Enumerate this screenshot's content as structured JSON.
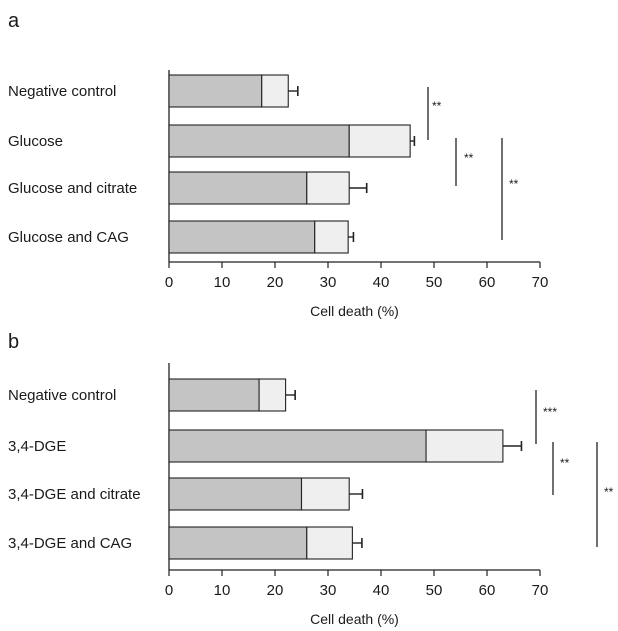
{
  "colors": {
    "dark_segment": "#c4c4c4",
    "light_segment": "#efefef",
    "stroke": "#222222",
    "text": "#1a1a1a"
  },
  "chart_data": [
    {
      "panel_label": "a",
      "type": "bar",
      "orientation": "horizontal",
      "stacked": true,
      "categories": [
        "Negative control",
        "Glucose",
        "Glucose and citrate",
        "Glucose and CAG"
      ],
      "series": [
        {
          "values": [
            17.5,
            34.0,
            26.0,
            27.5
          ]
        },
        {
          "values": [
            5.0,
            11.5,
            8.0,
            6.3
          ]
        }
      ],
      "totals": [
        22.5,
        45.5,
        34.0,
        33.8
      ],
      "error_bars": [
        1.8,
        0.8,
        3.3,
        1.0
      ],
      "xlabel": "Cell death (%)",
      "xlim": [
        0,
        70
      ],
      "xticks": [
        0,
        10,
        20,
        30,
        40,
        50,
        60,
        70
      ],
      "significance": [
        {
          "from": "Negative control",
          "to": "Glucose",
          "label": "**"
        },
        {
          "from": "Glucose",
          "to": "Glucose and citrate",
          "label": "**"
        },
        {
          "from": "Glucose",
          "to": "Glucose and CAG",
          "label": "**"
        }
      ]
    },
    {
      "panel_label": "b",
      "type": "bar",
      "orientation": "horizontal",
      "stacked": true,
      "categories": [
        "Negative control",
        "3,4-DGE",
        "3,4-DGE and citrate",
        "3,4-DGE and CAG"
      ],
      "series": [
        {
          "values": [
            17.0,
            48.5,
            25.0,
            26.0
          ]
        },
        {
          "values": [
            5.0,
            14.5,
            9.0,
            8.6
          ]
        }
      ],
      "totals": [
        22.0,
        63.0,
        34.0,
        34.6
      ],
      "error_bars": [
        1.8,
        3.5,
        2.5,
        1.8
      ],
      "xlabel": "Cell death  (%)",
      "xlim": [
        0,
        70
      ],
      "xticks": [
        0,
        10,
        20,
        30,
        40,
        50,
        60,
        70
      ],
      "significance": [
        {
          "from": "Negative control",
          "to": "3,4-DGE",
          "label": "***"
        },
        {
          "from": "3,4-DGE",
          "to": "3,4-DGE and citrate",
          "label": "**"
        },
        {
          "from": "3,4-DGE",
          "to": "3,4-DGE and CAG",
          "label": "**"
        }
      ]
    }
  ]
}
